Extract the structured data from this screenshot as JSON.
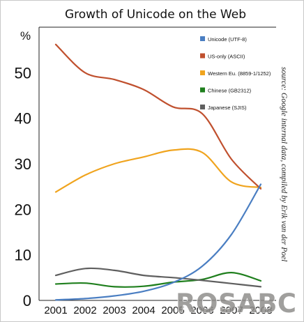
{
  "chart_data": {
    "type": "line",
    "title": "Growth of Unicode on the Web",
    "ylabel": "%",
    "xlabel": "",
    "x": [
      2001,
      2002,
      2003,
      2004,
      2005,
      2006,
      2007,
      2008
    ],
    "x_tick_labels": [
      "2001",
      "2002",
      "2003",
      "2004",
      "2005",
      "2006",
      "2007",
      "2008"
    ],
    "y_ticks": [
      0,
      10,
      20,
      30,
      40,
      50
    ],
    "y_tick_labels": [
      "0",
      "10",
      "20",
      "30",
      "40",
      "50"
    ],
    "ylim": [
      0,
      60
    ],
    "xlim": [
      2001,
      2008
    ],
    "grid": false,
    "legend_position": "top-right",
    "series": [
      {
        "name": "Unicode (UTF-8)",
        "color": "#4a7ec2",
        "values": [
          0.1,
          0.4,
          1.0,
          2.0,
          3.9,
          7.5,
          14.5,
          25.5
        ]
      },
      {
        "name": "US-only (ASCII)",
        "color": "#c0502e",
        "values": [
          56.2,
          50.0,
          48.5,
          46.3,
          42.5,
          41.0,
          31.0,
          24.5
        ]
      },
      {
        "name": "Western Eu. (8859-1/1252)",
        "color": "#f0a41e",
        "values": [
          23.8,
          27.5,
          30.0,
          31.5,
          33.0,
          32.5,
          26.0,
          24.8
        ]
      },
      {
        "name": "Chinese (GB2312)",
        "color": "#1f7f1d",
        "values": [
          3.6,
          3.8,
          3.0,
          3.1,
          4.0,
          4.6,
          6.1,
          4.3
        ]
      },
      {
        "name": "Japanese (SJIS)",
        "color": "#5f5f5f",
        "values": [
          5.5,
          7.0,
          6.6,
          5.5,
          5.0,
          4.4,
          3.7,
          3.0
        ]
      }
    ],
    "annotation": "source: Google internal data, compiled by Erik van der Poel",
    "watermark": "ROSABC"
  }
}
